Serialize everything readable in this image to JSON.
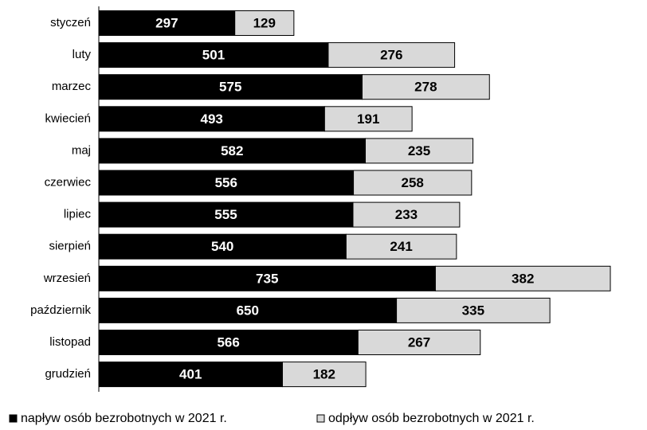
{
  "chart_data": {
    "type": "stacked_barh",
    "categories": [
      "styczeń",
      "luty",
      "marzec",
      "kwiecień",
      "maj",
      "czerwiec",
      "lipiec",
      "sierpień",
      "wrzesień",
      "październik",
      "listopad",
      "grudzień"
    ],
    "series": [
      {
        "name": "napływ osób bezrobotnych w 2021 r.",
        "color": "#000000",
        "label_color": "#ffffff",
        "values": [
          297,
          501,
          575,
          493,
          582,
          556,
          555,
          540,
          735,
          650,
          566,
          401
        ]
      },
      {
        "name": "odpływ osób bezrobotnych w 2021 r.",
        "color": "#d9d9d9",
        "label_color": "#000000",
        "values": [
          129,
          276,
          278,
          191,
          235,
          258,
          233,
          241,
          382,
          335,
          267,
          182
        ]
      }
    ],
    "legend": "bottom"
  }
}
